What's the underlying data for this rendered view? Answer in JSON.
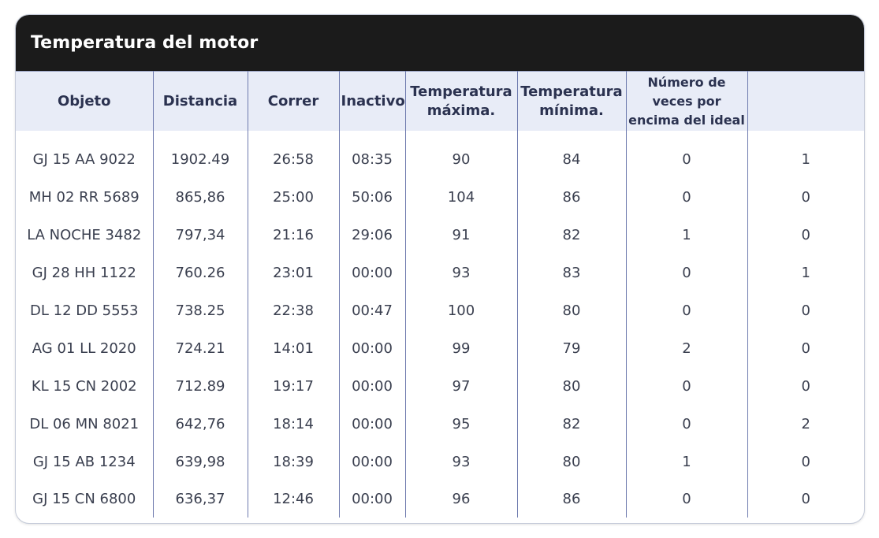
{
  "title": "Temperatura del motor",
  "columns": [
    "Objeto",
    "Distancia",
    "Correr",
    "Inactivo",
    "Temperatura máxima.",
    "Temperatura mínima.",
    "Número de veces por encima del ideal",
    ""
  ],
  "rows": [
    [
      "GJ 15 AA 9022",
      "1902.49",
      "26:58",
      "08:35",
      "90",
      "84",
      "0",
      "1"
    ],
    [
      "MH 02 RR 5689",
      "865,86",
      "25:00",
      "50:06",
      "104",
      "86",
      "0",
      "0"
    ],
    [
      "LA NOCHE  3482",
      "797,34",
      "21:16",
      "29:06",
      "91",
      "82",
      "1",
      "0"
    ],
    [
      "GJ 28 HH 1122",
      "760.26",
      "23:01",
      "00:00",
      "93",
      "83",
      "0",
      "1"
    ],
    [
      "DL 12 DD 5553",
      "738.25",
      "22:38",
      "00:47",
      "100",
      "80",
      "0",
      "0"
    ],
    [
      "AG 01 LL 2020",
      "724.21",
      "14:01",
      "00:00",
      "99",
      "79",
      "2",
      "0"
    ],
    [
      "KL 15 CN 2002",
      "712.89",
      "19:17",
      "00:00",
      "97",
      "80",
      "0",
      "0"
    ],
    [
      "DL 06 MN 8021",
      "642,76",
      "18:14",
      "00:00",
      "95",
      "82",
      "0",
      "2"
    ],
    [
      "GJ 15 AB 1234",
      "639,98",
      "18:39",
      "00:00",
      "93",
      "80",
      "1",
      "0"
    ],
    [
      "GJ 15 CN 6800",
      "636,37",
      "12:46",
      "00:00",
      "96",
      "86",
      "0",
      "0"
    ]
  ],
  "colors": {
    "header_bg": "#1b1b1b",
    "column_header_bg": "#e8ecf7",
    "divider": "#6e7aae",
    "text": "#3a3f4f"
  }
}
